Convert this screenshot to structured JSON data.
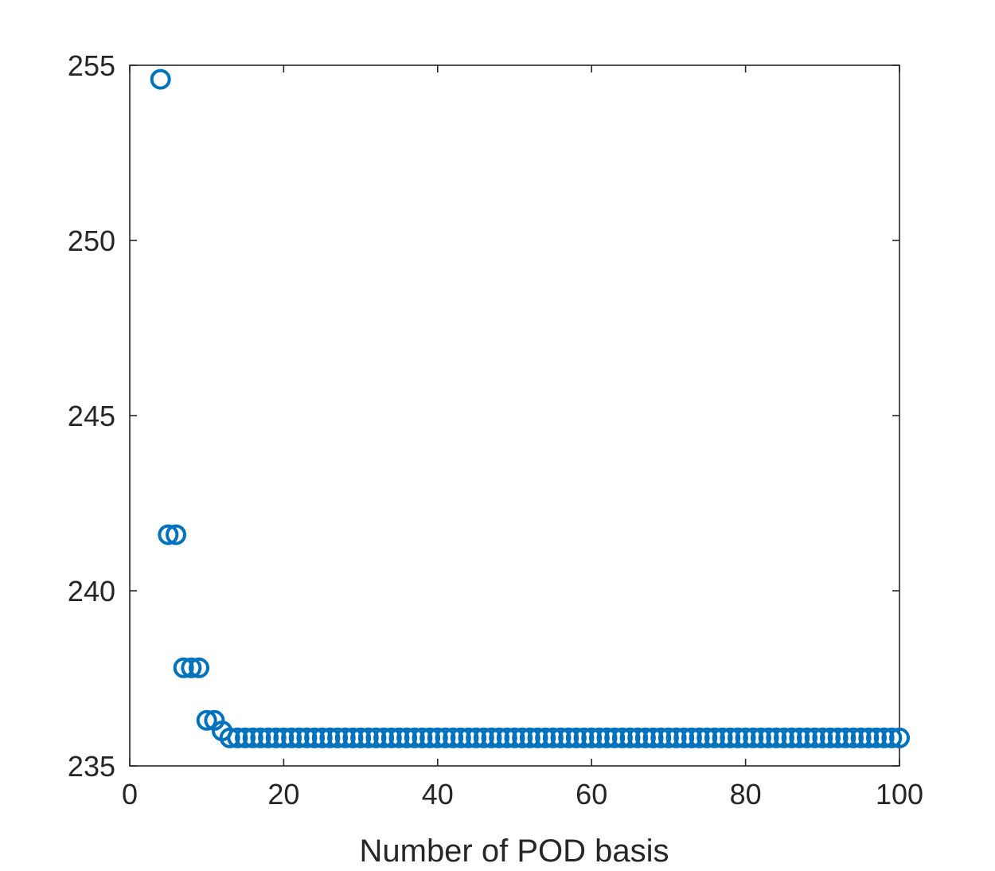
{
  "chart_data": {
    "type": "scatter",
    "title": "",
    "xlabel": "Number of POD basis",
    "ylabel": "",
    "xlim": [
      0,
      100
    ],
    "ylim": [
      235,
      255
    ],
    "xticks": [
      0,
      20,
      40,
      60,
      80,
      100
    ],
    "yticks": [
      235,
      240,
      245,
      250,
      255
    ],
    "xtick_labels": [
      "0",
      "20",
      "40",
      "60",
      "80",
      "100"
    ],
    "ytick_labels": [
      "235",
      "240",
      "245",
      "250",
      "255"
    ],
    "grid": false,
    "marker": "open-circle",
    "series": [
      {
        "color": "#0072BD",
        "points": [
          [
            4,
            254.6
          ],
          [
            5,
            241.6
          ],
          [
            6,
            241.6
          ],
          [
            7,
            237.8
          ],
          [
            8,
            237.8
          ],
          [
            9,
            237.8
          ],
          [
            10,
            236.3
          ],
          [
            11,
            236.3
          ],
          [
            12,
            236.0
          ],
          [
            13,
            235.8
          ],
          [
            14,
            235.8
          ],
          [
            15,
            235.8
          ],
          [
            16,
            235.8
          ],
          [
            17,
            235.8
          ],
          [
            18,
            235.8
          ],
          [
            19,
            235.8
          ],
          [
            20,
            235.8
          ],
          [
            21,
            235.8
          ],
          [
            22,
            235.8
          ],
          [
            23,
            235.8
          ],
          [
            24,
            235.8
          ],
          [
            25,
            235.8
          ],
          [
            26,
            235.8
          ],
          [
            27,
            235.8
          ],
          [
            28,
            235.8
          ],
          [
            29,
            235.8
          ],
          [
            30,
            235.8
          ],
          [
            31,
            235.8
          ],
          [
            32,
            235.8
          ],
          [
            33,
            235.8
          ],
          [
            34,
            235.8
          ],
          [
            35,
            235.8
          ],
          [
            36,
            235.8
          ],
          [
            37,
            235.8
          ],
          [
            38,
            235.8
          ],
          [
            39,
            235.8
          ],
          [
            40,
            235.8
          ],
          [
            41,
            235.8
          ],
          [
            42,
            235.8
          ],
          [
            43,
            235.8
          ],
          [
            44,
            235.8
          ],
          [
            45,
            235.8
          ],
          [
            46,
            235.8
          ],
          [
            47,
            235.8
          ],
          [
            48,
            235.8
          ],
          [
            49,
            235.8
          ],
          [
            50,
            235.8
          ],
          [
            51,
            235.8
          ],
          [
            52,
            235.8
          ],
          [
            53,
            235.8
          ],
          [
            54,
            235.8
          ],
          [
            55,
            235.8
          ],
          [
            56,
            235.8
          ],
          [
            57,
            235.8
          ],
          [
            58,
            235.8
          ],
          [
            59,
            235.8
          ],
          [
            60,
            235.8
          ],
          [
            61,
            235.8
          ],
          [
            62,
            235.8
          ],
          [
            63,
            235.8
          ],
          [
            64,
            235.8
          ],
          [
            65,
            235.8
          ],
          [
            66,
            235.8
          ],
          [
            67,
            235.8
          ],
          [
            68,
            235.8
          ],
          [
            69,
            235.8
          ],
          [
            70,
            235.8
          ],
          [
            71,
            235.8
          ],
          [
            72,
            235.8
          ],
          [
            73,
            235.8
          ],
          [
            74,
            235.8
          ],
          [
            75,
            235.8
          ],
          [
            76,
            235.8
          ],
          [
            77,
            235.8
          ],
          [
            78,
            235.8
          ],
          [
            79,
            235.8
          ],
          [
            80,
            235.8
          ],
          [
            81,
            235.8
          ],
          [
            82,
            235.8
          ],
          [
            83,
            235.8
          ],
          [
            84,
            235.8
          ],
          [
            85,
            235.8
          ],
          [
            86,
            235.8
          ],
          [
            87,
            235.8
          ],
          [
            88,
            235.8
          ],
          [
            89,
            235.8
          ],
          [
            90,
            235.8
          ],
          [
            91,
            235.8
          ],
          [
            92,
            235.8
          ],
          [
            93,
            235.8
          ],
          [
            94,
            235.8
          ],
          [
            95,
            235.8
          ],
          [
            96,
            235.8
          ],
          [
            97,
            235.8
          ],
          [
            98,
            235.8
          ],
          [
            99,
            235.8
          ],
          [
            100,
            235.8
          ]
        ]
      }
    ]
  }
}
